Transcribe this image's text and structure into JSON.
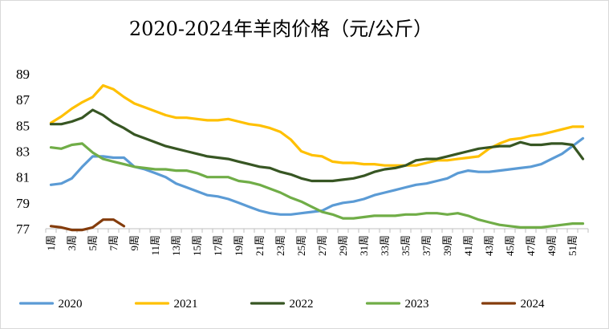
{
  "chart_data": {
    "type": "line",
    "title": "2020-2024年羊肉价格（元/公斤）",
    "xlabel": "",
    "ylabel": "",
    "ylim": [
      77,
      89
    ],
    "yticks": [
      77,
      79,
      81,
      83,
      85,
      87,
      89
    ],
    "x_tick_labels": [
      "1周",
      "3周",
      "5周",
      "7周",
      "9周",
      "11周",
      "13周",
      "15周",
      "17周",
      "19周",
      "21周",
      "23周",
      "25周",
      "27周",
      "29周",
      "31周",
      "33周",
      "35周",
      "37周",
      "39周",
      "41周",
      "43周",
      "45周",
      "47周",
      "49周",
      "51周"
    ],
    "grid": false,
    "legend_position": "bottom",
    "series": [
      {
        "name": "2020",
        "color": "#5b9bd5",
        "values": [
          80.4,
          80.5,
          80.9,
          81.8,
          82.6,
          82.6,
          82.5,
          82.5,
          81.8,
          81.6,
          81.3,
          81.0,
          80.5,
          80.2,
          79.9,
          79.6,
          79.5,
          79.3,
          79.0,
          78.7,
          78.4,
          78.2,
          78.1,
          78.1,
          78.2,
          78.3,
          78.4,
          78.8,
          79.0,
          79.1,
          79.3,
          79.6,
          79.8,
          80.0,
          80.2,
          80.4,
          80.5,
          80.7,
          80.9,
          81.3,
          81.5,
          81.4,
          81.4,
          81.5,
          81.6,
          81.7,
          81.8,
          82.0,
          82.4,
          82.8,
          83.4,
          84.0
        ]
      },
      {
        "name": "2021",
        "color": "#ffc000",
        "values": [
          85.2,
          85.7,
          86.3,
          86.8,
          87.2,
          88.1,
          87.8,
          87.2,
          86.7,
          86.4,
          86.1,
          85.8,
          85.6,
          85.6,
          85.5,
          85.4,
          85.4,
          85.5,
          85.3,
          85.1,
          85.0,
          84.8,
          84.5,
          83.9,
          83.0,
          82.7,
          82.6,
          82.2,
          82.1,
          82.1,
          82.0,
          82.0,
          81.9,
          81.9,
          81.9,
          81.9,
          82.1,
          82.3,
          82.3,
          82.4,
          82.5,
          82.6,
          83.2,
          83.6,
          83.9,
          84.0,
          84.2,
          84.3,
          84.5,
          84.7,
          84.9,
          84.9
        ]
      },
      {
        "name": "2022",
        "color": "#375623",
        "values": [
          85.1,
          85.1,
          85.3,
          85.6,
          86.2,
          85.8,
          85.2,
          84.8,
          84.3,
          84.0,
          83.7,
          83.4,
          83.2,
          83.0,
          82.8,
          82.6,
          82.5,
          82.4,
          82.2,
          82.0,
          81.8,
          81.7,
          81.4,
          81.2,
          80.9,
          80.7,
          80.7,
          80.7,
          80.8,
          80.9,
          81.1,
          81.4,
          81.6,
          81.7,
          81.9,
          82.3,
          82.4,
          82.4,
          82.6,
          82.8,
          83.0,
          83.2,
          83.3,
          83.4,
          83.4,
          83.7,
          83.5,
          83.5,
          83.6,
          83.6,
          83.5,
          82.4
        ]
      },
      {
        "name": "2023",
        "color": "#70ad47",
        "values": [
          83.3,
          83.2,
          83.5,
          83.6,
          82.9,
          82.4,
          82.2,
          82.0,
          81.8,
          81.7,
          81.6,
          81.6,
          81.5,
          81.5,
          81.3,
          81.0,
          81.0,
          81.0,
          80.7,
          80.6,
          80.4,
          80.1,
          79.8,
          79.4,
          79.1,
          78.7,
          78.3,
          78.1,
          77.8,
          77.8,
          77.9,
          78.0,
          78.0,
          78.0,
          78.1,
          78.1,
          78.2,
          78.2,
          78.1,
          78.2,
          78.0,
          77.7,
          77.5,
          77.3,
          77.2,
          77.1,
          77.1,
          77.1,
          77.2,
          77.3,
          77.4,
          77.4
        ]
      },
      {
        "name": "2024",
        "color": "#843c0c",
        "values": [
          77.2,
          77.1,
          76.9,
          76.9,
          77.1,
          77.7,
          77.7,
          77.2
        ]
      }
    ]
  }
}
